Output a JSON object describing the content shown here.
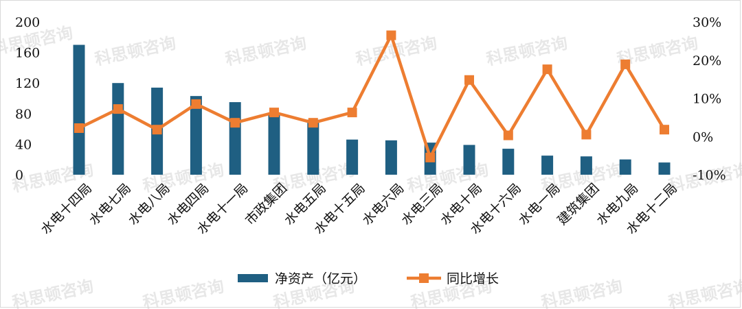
{
  "watermark": "科思顿咨询",
  "chart_data": {
    "type": "bar+line",
    "categories": [
      "水电十四局",
      "水电七局",
      "水电八局",
      "水电四局",
      "水电十一局",
      "市政集团",
      "水电五局",
      "水电十五局",
      "水电六局",
      "水电三局",
      "水电十局",
      "水电十六局",
      "水电一局",
      "建筑集团",
      "水电九局",
      "水电十二局"
    ],
    "series": [
      {
        "name": "净资产（亿元）",
        "type": "bar",
        "axis": "left",
        "color": "#1f5f82",
        "values": [
          170,
          120,
          114,
          103,
          95,
          80,
          72,
          46,
          45,
          42,
          39,
          34,
          25,
          24,
          20,
          16
        ]
      },
      {
        "name": "同比增长",
        "type": "line",
        "axis": "right",
        "color": "#ed7d31",
        "values": [
          2.2,
          7.2,
          1.8,
          8.5,
          3.6,
          6.3,
          3.6,
          6.3,
          26.5,
          -5.5,
          14.8,
          0.3,
          17.6,
          0.5,
          18.9,
          1.8
        ]
      }
    ],
    "yleft": {
      "min": 0,
      "max": 200,
      "ticks": [
        "0",
        "40",
        "80",
        "120",
        "160",
        "200"
      ]
    },
    "yright": {
      "min": -10,
      "max": 30,
      "ticks": [
        "-10%",
        "0%",
        "10%",
        "20%",
        "30%"
      ]
    },
    "legend_position": "bottom",
    "grid": false
  }
}
